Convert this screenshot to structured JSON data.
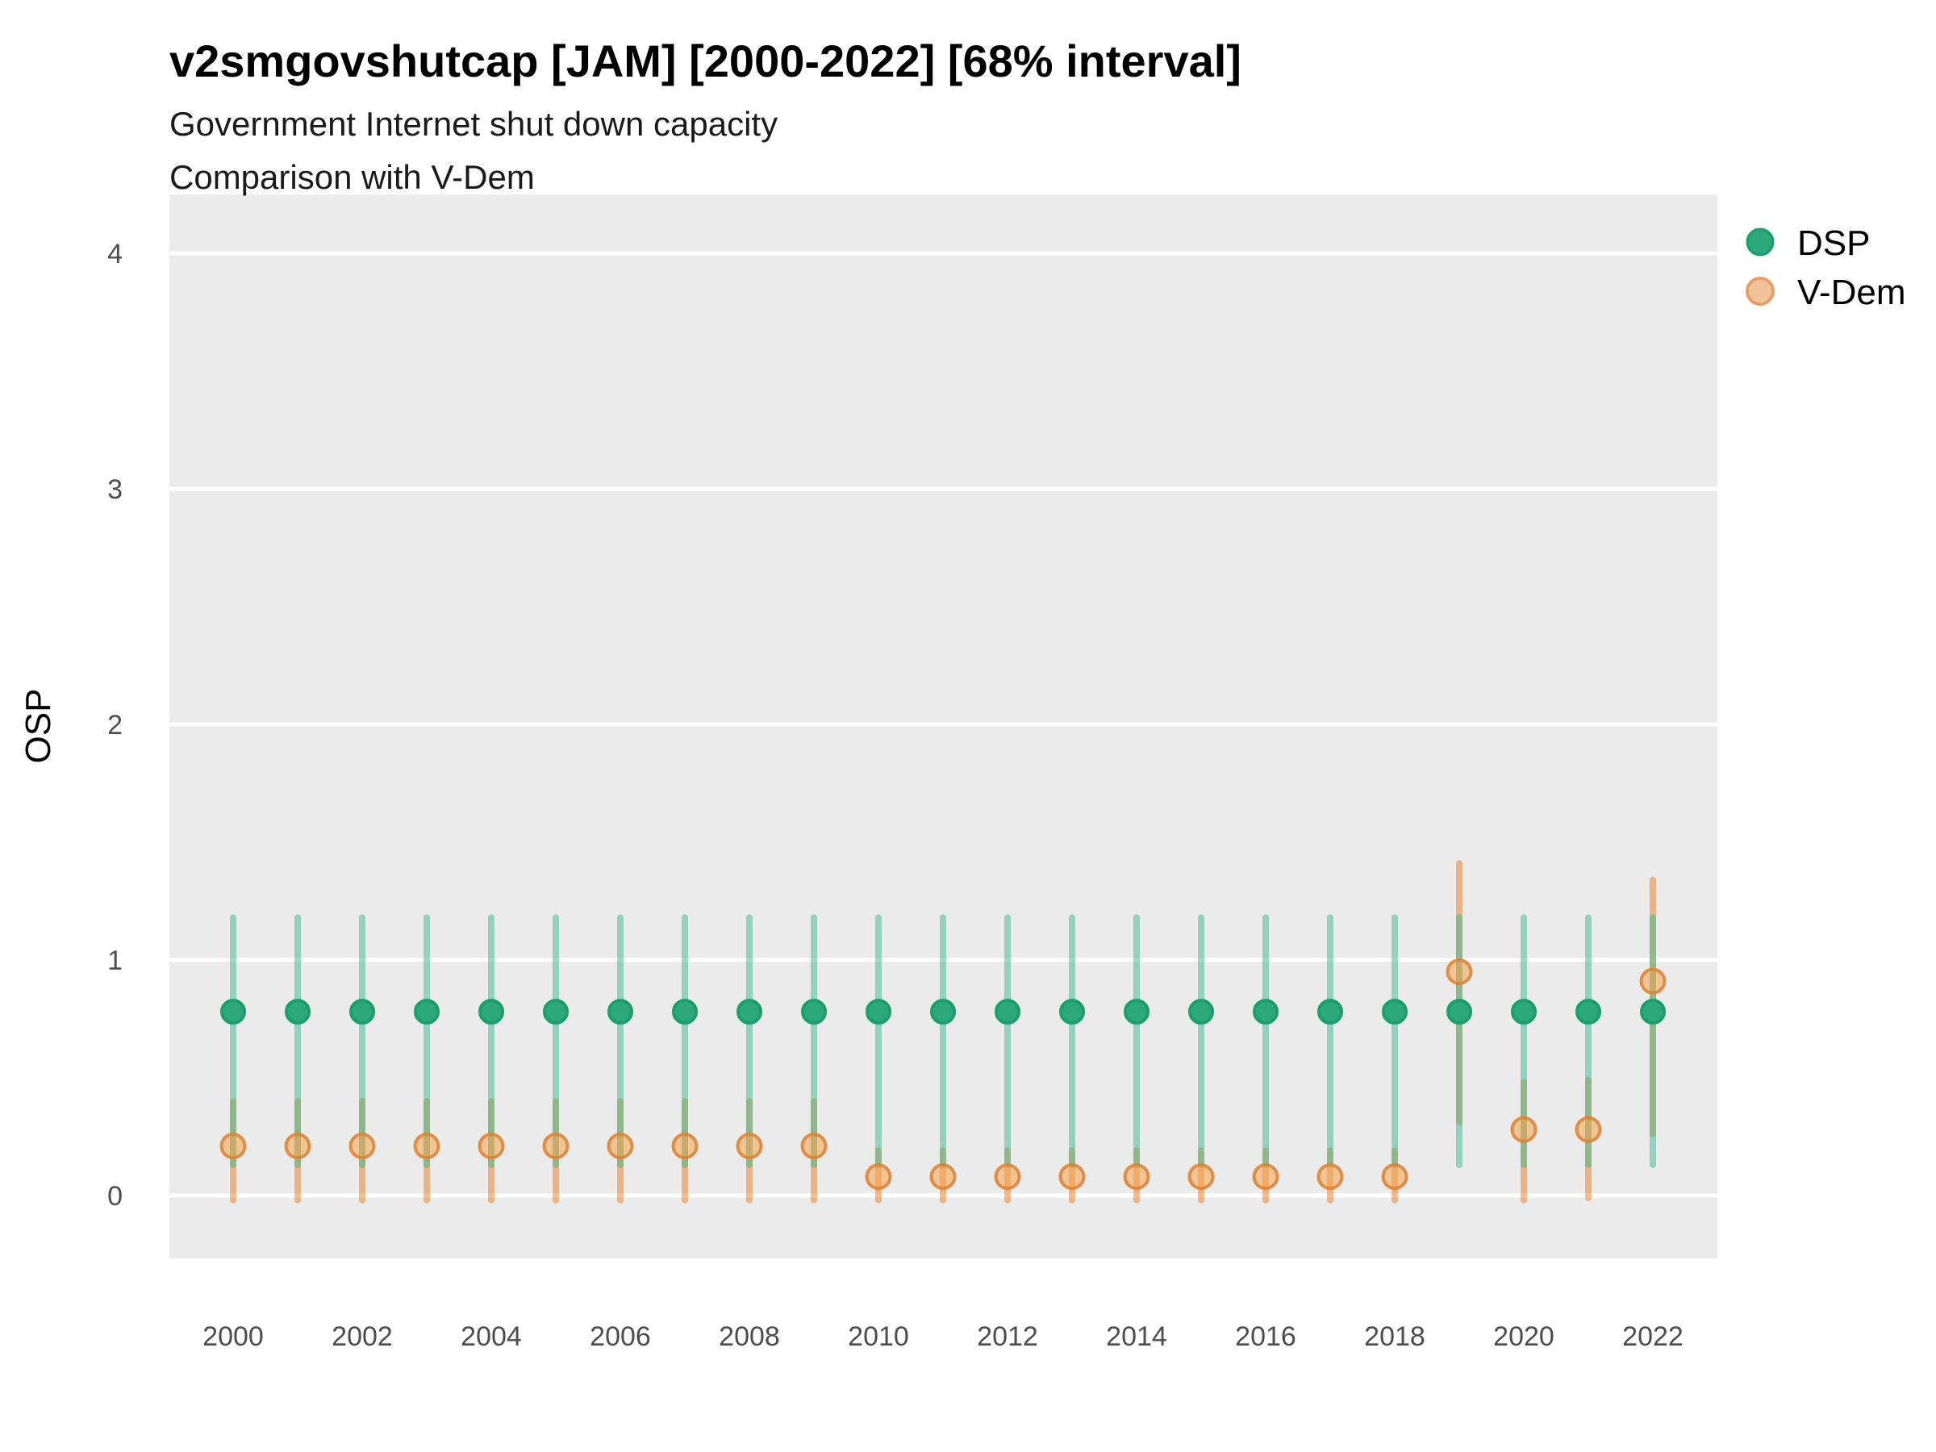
{
  "title": "v2smgovshutcap [JAM] [2000-2022] [68% interval]",
  "subtitle_line1": "Government Internet shut down capacity",
  "subtitle_line2": "Comparison with V-Dem",
  "y_axis_title": "OSP",
  "legend": {
    "position": "right",
    "items": [
      {
        "label": "DSP",
        "swatch": "dsp-legend-dot"
      },
      {
        "label": "V-Dem",
        "swatch": "vdem-legend-dot"
      }
    ]
  },
  "colors": {
    "panel_bg": "#EBEBEB",
    "gridline": "#FFFFFF",
    "dsp_interval": "rgba(54,186,144,0.50)",
    "vdem_interval": "rgba(236,124,34,0.50)",
    "dsp_point_fill": "#2CA87A",
    "dsp_point_stroke": "#1A9E6D",
    "vdem_point_fill": "rgba(244,164,78,0.55)",
    "vdem_point_stroke": "rgba(222,128,48,0.85)",
    "vdem_legend_fill": "#F2C39B",
    "vdem_legend_stroke": "#E89E66",
    "tick_text": "#4d4d4d"
  },
  "chart_data": {
    "type": "pointrange",
    "title": "v2smgovshutcap [JAM] [2000-2022] [68% interval]",
    "subtitle": "Government Internet shut down capacity\nComparison with V-Dem",
    "xlabel": "",
    "ylabel": "OSP",
    "interval_level": "68%",
    "grid": "major horizontal white gridlines on grey panel",
    "legend_position": "right",
    "x_ticks": [
      2000,
      2002,
      2004,
      2006,
      2008,
      2010,
      2012,
      2014,
      2016,
      2018,
      2020,
      2022
    ],
    "y_ticks": [
      0,
      1,
      2,
      3,
      4
    ],
    "xlim": [
      1999.0,
      2023.0
    ],
    "ylim": [
      -0.27,
      4.25
    ],
    "years": [
      2000,
      2001,
      2002,
      2003,
      2004,
      2005,
      2006,
      2007,
      2008,
      2009,
      2010,
      2011,
      2012,
      2013,
      2014,
      2015,
      2016,
      2017,
      2018,
      2019,
      2020,
      2021,
      2022
    ],
    "series": [
      {
        "name": "DSP",
        "points": [
          {
            "year": 2000,
            "value": 0.78,
            "lo": 0.13,
            "hi": 1.18
          },
          {
            "year": 2001,
            "value": 0.78,
            "lo": 0.13,
            "hi": 1.18
          },
          {
            "year": 2002,
            "value": 0.78,
            "lo": 0.13,
            "hi": 1.18
          },
          {
            "year": 2003,
            "value": 0.78,
            "lo": 0.13,
            "hi": 1.18
          },
          {
            "year": 2004,
            "value": 0.78,
            "lo": 0.13,
            "hi": 1.18
          },
          {
            "year": 2005,
            "value": 0.78,
            "lo": 0.13,
            "hi": 1.18
          },
          {
            "year": 2006,
            "value": 0.78,
            "lo": 0.13,
            "hi": 1.18
          },
          {
            "year": 2007,
            "value": 0.78,
            "lo": 0.13,
            "hi": 1.18
          },
          {
            "year": 2008,
            "value": 0.78,
            "lo": 0.13,
            "hi": 1.18
          },
          {
            "year": 2009,
            "value": 0.78,
            "lo": 0.13,
            "hi": 1.18
          },
          {
            "year": 2010,
            "value": 0.78,
            "lo": 0.13,
            "hi": 1.18
          },
          {
            "year": 2011,
            "value": 0.78,
            "lo": 0.13,
            "hi": 1.18
          },
          {
            "year": 2012,
            "value": 0.78,
            "lo": 0.13,
            "hi": 1.18
          },
          {
            "year": 2013,
            "value": 0.78,
            "lo": 0.13,
            "hi": 1.18
          },
          {
            "year": 2014,
            "value": 0.78,
            "lo": 0.13,
            "hi": 1.18
          },
          {
            "year": 2015,
            "value": 0.78,
            "lo": 0.13,
            "hi": 1.18
          },
          {
            "year": 2016,
            "value": 0.78,
            "lo": 0.13,
            "hi": 1.18
          },
          {
            "year": 2017,
            "value": 0.78,
            "lo": 0.13,
            "hi": 1.18
          },
          {
            "year": 2018,
            "value": 0.78,
            "lo": 0.13,
            "hi": 1.18
          },
          {
            "year": 2019,
            "value": 0.78,
            "lo": 0.13,
            "hi": 1.18
          },
          {
            "year": 2020,
            "value": 0.78,
            "lo": 0.13,
            "hi": 1.18
          },
          {
            "year": 2021,
            "value": 0.78,
            "lo": 0.13,
            "hi": 1.18
          },
          {
            "year": 2022,
            "value": 0.78,
            "lo": 0.13,
            "hi": 1.18
          }
        ]
      },
      {
        "name": "V-Dem",
        "points": [
          {
            "year": 2000,
            "value": 0.21,
            "lo": -0.02,
            "hi": 0.4
          },
          {
            "year": 2001,
            "value": 0.21,
            "lo": -0.02,
            "hi": 0.4
          },
          {
            "year": 2002,
            "value": 0.21,
            "lo": -0.02,
            "hi": 0.4
          },
          {
            "year": 2003,
            "value": 0.21,
            "lo": -0.02,
            "hi": 0.4
          },
          {
            "year": 2004,
            "value": 0.21,
            "lo": -0.02,
            "hi": 0.4
          },
          {
            "year": 2005,
            "value": 0.21,
            "lo": -0.02,
            "hi": 0.4
          },
          {
            "year": 2006,
            "value": 0.21,
            "lo": -0.02,
            "hi": 0.4
          },
          {
            "year": 2007,
            "value": 0.21,
            "lo": -0.02,
            "hi": 0.4
          },
          {
            "year": 2008,
            "value": 0.21,
            "lo": -0.02,
            "hi": 0.4
          },
          {
            "year": 2009,
            "value": 0.21,
            "lo": -0.02,
            "hi": 0.4
          },
          {
            "year": 2010,
            "value": 0.08,
            "lo": -0.02,
            "hi": 0.19
          },
          {
            "year": 2011,
            "value": 0.08,
            "lo": -0.02,
            "hi": 0.19
          },
          {
            "year": 2012,
            "value": 0.08,
            "lo": -0.02,
            "hi": 0.19
          },
          {
            "year": 2013,
            "value": 0.08,
            "lo": -0.02,
            "hi": 0.19
          },
          {
            "year": 2014,
            "value": 0.08,
            "lo": -0.02,
            "hi": 0.19
          },
          {
            "year": 2015,
            "value": 0.08,
            "lo": -0.02,
            "hi": 0.19
          },
          {
            "year": 2016,
            "value": 0.08,
            "lo": -0.02,
            "hi": 0.19
          },
          {
            "year": 2017,
            "value": 0.08,
            "lo": -0.02,
            "hi": 0.19
          },
          {
            "year": 2018,
            "value": 0.08,
            "lo": -0.02,
            "hi": 0.19
          },
          {
            "year": 2019,
            "value": 0.95,
            "lo": 0.31,
            "hi": 1.41
          },
          {
            "year": 2020,
            "value": 0.28,
            "lo": -0.02,
            "hi": 0.48
          },
          {
            "year": 2021,
            "value": 0.28,
            "lo": -0.01,
            "hi": 0.49
          },
          {
            "year": 2022,
            "value": 0.91,
            "lo": 0.26,
            "hi": 1.34
          }
        ]
      }
    ]
  }
}
